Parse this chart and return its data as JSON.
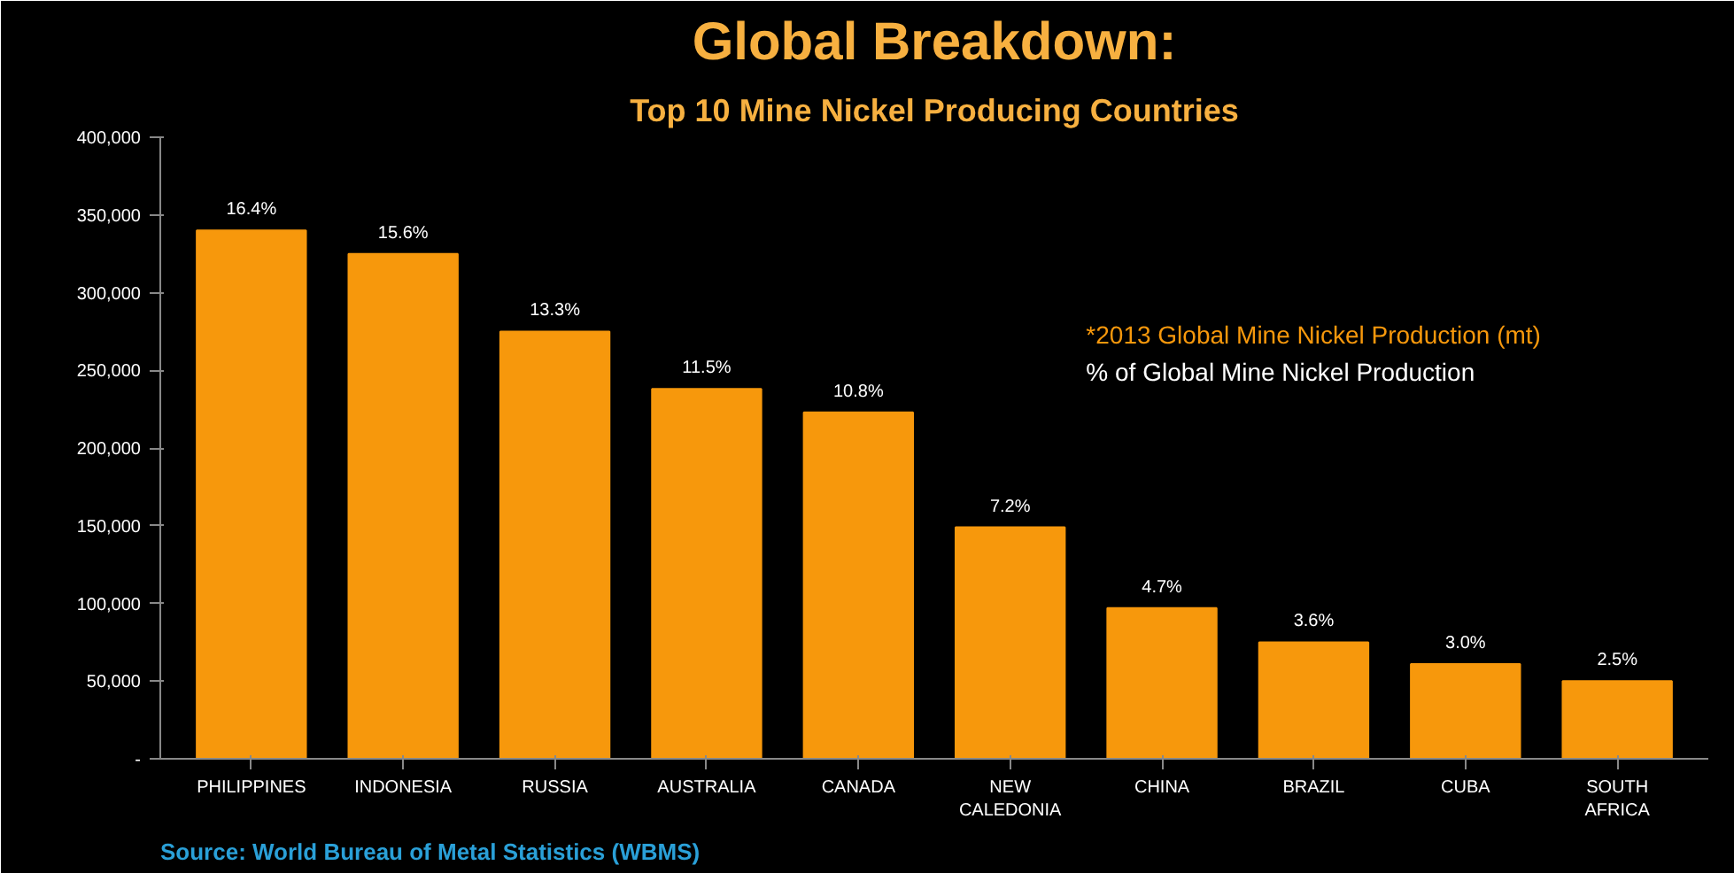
{
  "chart_data": {
    "type": "bar",
    "title": "Global Breakdown:",
    "subtitle": "Top 10 Mine Nickel Producing Countries",
    "categories": [
      "PHILIPPINES",
      "INDONESIA",
      "RUSSIA",
      "AUSTRALIA",
      "CANADA",
      "NEW CALEDONIA",
      "CHINA",
      "BRAZIL",
      "CUBA",
      "SOUTH AFRICA"
    ],
    "series": [
      {
        "color": "#f7980c",
        "values": [
          340000,
          325000,
          275000,
          238000,
          223000,
          149000,
          97000,
          75000,
          61000,
          50000
        ]
      }
    ],
    "ylim": [
      0,
      400000
    ],
    "yticks": [
      {
        "value": 0,
        "label": "-"
      },
      {
        "value": 50000,
        "label": "50,000"
      },
      {
        "value": 100000,
        "label": "100,000"
      },
      {
        "value": 150000,
        "label": "150,000"
      },
      {
        "value": 200000,
        "label": "200,000"
      },
      {
        "value": 250000,
        "label": "250,000"
      },
      {
        "value": 300000,
        "label": "300,000"
      },
      {
        "value": 350000,
        "label": "350,000"
      },
      {
        "value": 400000,
        "label": "400,000"
      }
    ],
    "annotations": [
      "*2013 Global Mine Nickel Production (mt)",
      "% of Global Mine Nickel Production",
      "Source: World Bureau of Metal Statistics (WBMS)",
      {
        "text": "16.4%",
        "x": "PHILIPPINES",
        "y": 340000
      },
      {
        "text": "15.6%",
        "x": "INDONESIA",
        "y": 325000
      },
      {
        "text": "13.3%",
        "x": "RUSSIA",
        "y": 275000
      },
      {
        "text": "11.5%",
        "x": "AUSTRALIA",
        "y": 238000
      },
      {
        "text": "10.8%",
        "x": "CANADA",
        "y": 223000
      },
      {
        "text": "7.2%",
        "x": "NEW CALEDONIA",
        "y": 149000
      },
      {
        "text": "4.7%",
        "x": "CHINA",
        "y": 97000
      },
      {
        "text": "3.6%",
        "x": "BRAZIL",
        "y": 75000
      },
      {
        "text": "3.0%",
        "x": "CUBA",
        "y": 61000
      },
      {
        "text": "2.5%",
        "x": "SOUTH AFRICA",
        "y": 50000
      }
    ],
    "grid": false
  }
}
